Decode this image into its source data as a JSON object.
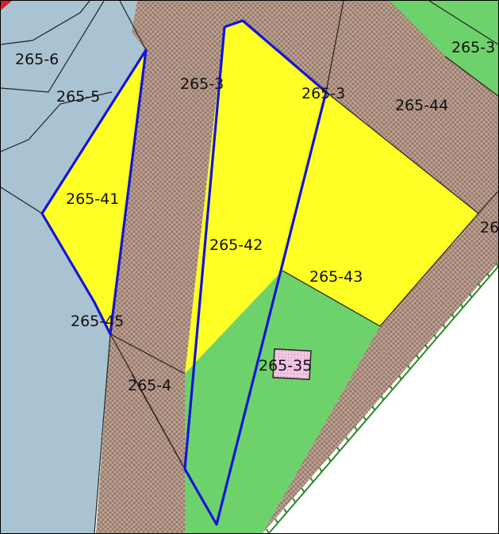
{
  "map": {
    "colors": {
      "water": "#a9c3d2",
      "built_hatch_bg": "#9a7a6a",
      "built_hatch_line": "#c8b4a8",
      "highlight_parcel": "#ffff26",
      "green_area": "#6ed26c",
      "outline": "#1414d8",
      "marker_pink": "#f3c6e6",
      "boundary_tick": "#2b8a2b"
    },
    "labels": {
      "p265_6": "265-6",
      "p265_5": "265-5",
      "p265_3a": "265-3",
      "p265_3b": "265-3",
      "p265_44": "265-44",
      "p265_top_right": "265-3",
      "p265_41": "265-41",
      "p265_42": "265-42",
      "p265_43": "265-43",
      "p265_45": "265-45",
      "p265_35": "265-35",
      "p265_4": "265-4",
      "p26_right": "26"
    }
  }
}
